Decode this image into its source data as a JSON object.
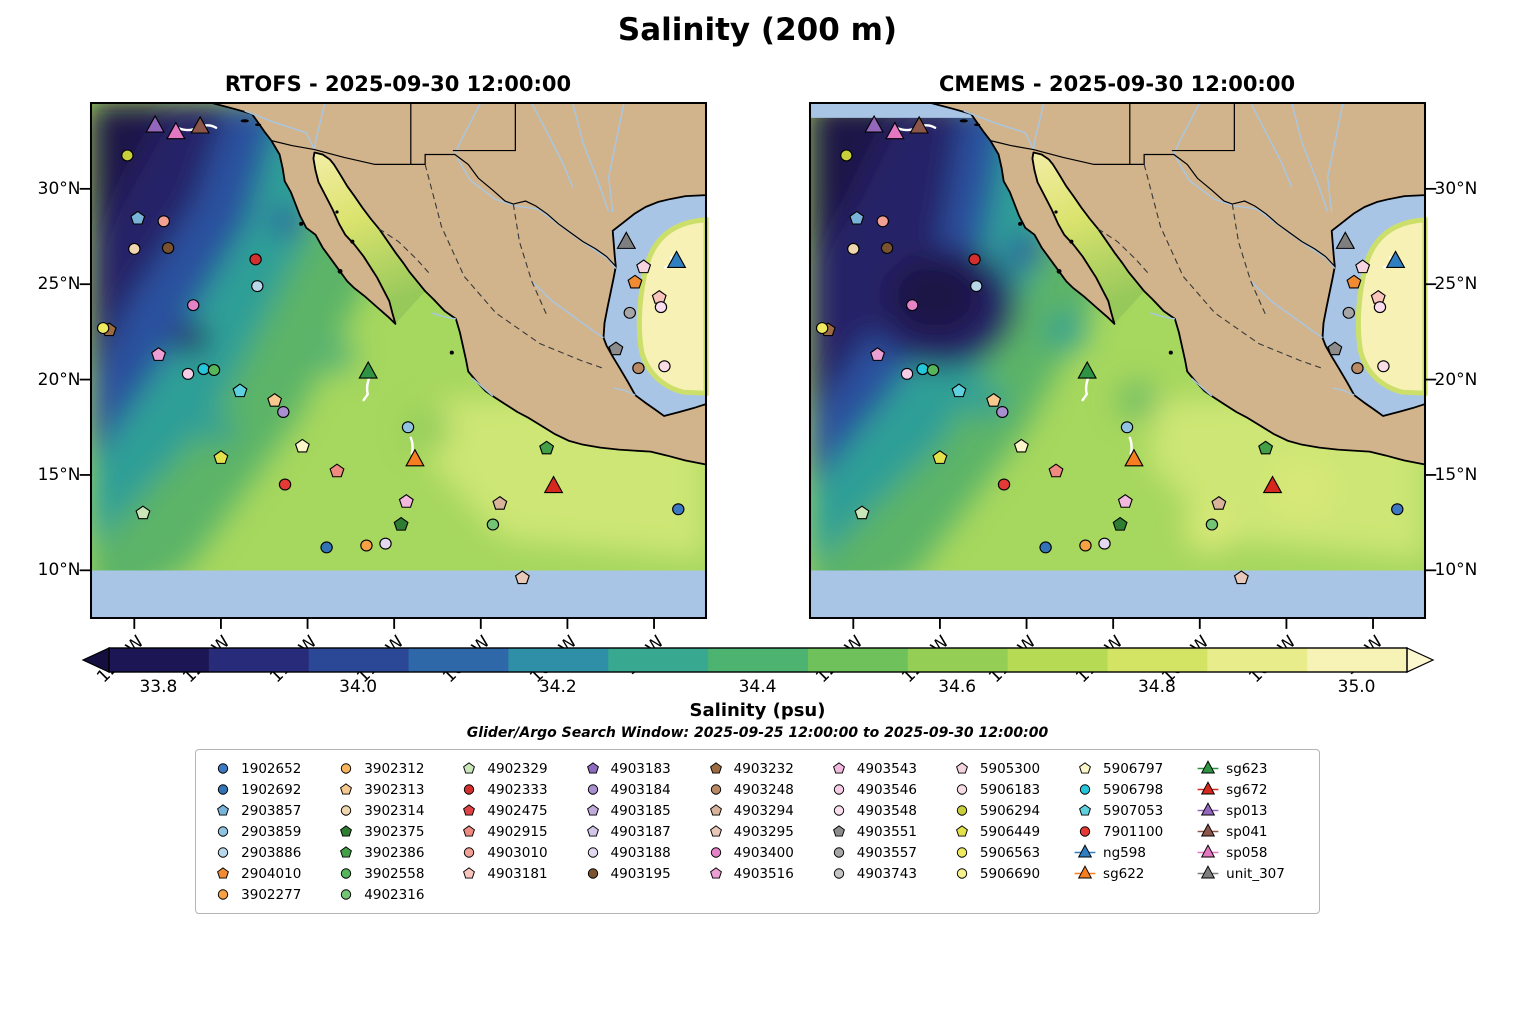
{
  "figure": {
    "title": "Salinity (200 m)",
    "panels": [
      {
        "title": "RTOFS - 2025-09-30 12:00:00",
        "model": "RTOFS"
      },
      {
        "title": "CMEMS - 2025-09-30 12:00:00",
        "model": "CMEMS"
      }
    ]
  },
  "colorbar": {
    "label": "Salinity (psu)",
    "ticks": [
      "33.8",
      "34.0",
      "34.2",
      "34.4",
      "34.6",
      "34.8",
      "35.0"
    ],
    "tick_values": [
      33.8,
      34.0,
      34.2,
      34.4,
      34.6,
      34.8,
      35.0
    ],
    "range": [
      33.75,
      35.05
    ],
    "colors": [
      "#1d1654",
      "#272b7a",
      "#2b4897",
      "#2e68a9",
      "#2f8fa6",
      "#38a890",
      "#4cb370",
      "#6fc15c",
      "#94ce54",
      "#b7da55",
      "#d3e364",
      "#e9ec8b",
      "#f7f3b7"
    ],
    "extend_left": "#140f3e",
    "extend_right": "#fbf8d0"
  },
  "search_window": "Glider/Argo Search Window: 2025-09-25 12:00:00 to 2025-09-30 12:00:00",
  "legend": {
    "columns": [
      [
        {
          "label": "1902652",
          "marker": "circle",
          "color": "#3d78c2"
        },
        {
          "label": "1902692",
          "marker": "circle",
          "color": "#3173b5"
        },
        {
          "label": "2903857",
          "marker": "pentagon",
          "color": "#7ab3d9"
        },
        {
          "label": "2903859",
          "marker": "circle",
          "color": "#8fc3e0"
        },
        {
          "label": "2903886",
          "marker": "circle",
          "color": "#b8d8ea"
        },
        {
          "label": "2904010",
          "marker": "pentagon",
          "color": "#f08b33"
        },
        {
          "label": "3902277",
          "marker": "circle",
          "color": "#f6a143"
        }
      ],
      [
        {
          "label": "3902312",
          "marker": "circle",
          "color": "#f9b45c"
        },
        {
          "label": "3902313",
          "marker": "pentagon",
          "color": "#f8c98e"
        },
        {
          "label": "3902314",
          "marker": "circle",
          "color": "#f0d6ae"
        },
        {
          "label": "3902375",
          "marker": "pentagon",
          "color": "#2e7d32"
        },
        {
          "label": "3902386",
          "marker": "pentagon",
          "color": "#43a047"
        },
        {
          "label": "3902558",
          "marker": "circle",
          "color": "#57b65b"
        },
        {
          "label": "4902316",
          "marker": "circle",
          "color": "#74c476"
        }
      ],
      [
        {
          "label": "4902329",
          "marker": "pentagon",
          "color": "#c8e6b8"
        },
        {
          "label": "4902333",
          "marker": "circle",
          "color": "#d32f2f"
        },
        {
          "label": "4902475",
          "marker": "pentagon",
          "color": "#e04343"
        },
        {
          "label": "4902915",
          "marker": "pentagon",
          "color": "#ef8a80"
        },
        {
          "label": "4903010",
          "marker": "circle",
          "color": "#f2a093"
        },
        {
          "label": "4903181",
          "marker": "pentagon",
          "color": "#f9c4bc"
        }
      ],
      [
        {
          "label": "4903183",
          "marker": "pentagon",
          "color": "#8e6bbf"
        },
        {
          "label": "4903184",
          "marker": "circle",
          "color": "#a98fd0"
        },
        {
          "label": "4903185",
          "marker": "pentagon",
          "color": "#c0abdc"
        },
        {
          "label": "4903187",
          "marker": "pentagon",
          "color": "#d4c6e8"
        },
        {
          "label": "4903188",
          "marker": "circle",
          "color": "#e2d9f0"
        },
        {
          "label": "4903195",
          "marker": "circle",
          "color": "#7a5230"
        }
      ],
      [
        {
          "label": "4903232",
          "marker": "pentagon",
          "color": "#9c6b42"
        },
        {
          "label": "4903248",
          "marker": "circle",
          "color": "#b98a63"
        },
        {
          "label": "4903294",
          "marker": "pentagon",
          "color": "#d9b49a"
        },
        {
          "label": "4903295",
          "marker": "pentagon",
          "color": "#e8c8b8"
        },
        {
          "label": "4903400",
          "marker": "circle",
          "color": "#e583c9"
        },
        {
          "label": "4903516",
          "marker": "pentagon",
          "color": "#eb9fd4"
        }
      ],
      [
        {
          "label": "4903543",
          "marker": "pentagon",
          "color": "#f2b8dd"
        },
        {
          "label": "4903546",
          "marker": "circle",
          "color": "#f6cce7"
        },
        {
          "label": "4903548",
          "marker": "circle",
          "color": "#fadef0"
        },
        {
          "label": "4903551",
          "marker": "pentagon",
          "color": "#8c8c8c"
        },
        {
          "label": "4903557",
          "marker": "circle",
          "color": "#a6a6a6"
        },
        {
          "label": "4903743",
          "marker": "circle",
          "color": "#c4c4c4"
        }
      ],
      [
        {
          "label": "5905300",
          "marker": "pentagon",
          "color": "#f5d4e0"
        },
        {
          "label": "5906183",
          "marker": "circle",
          "color": "#f8dce6"
        },
        {
          "label": "5906294",
          "marker": "circle",
          "color": "#c9cf3a"
        },
        {
          "label": "5906449",
          "marker": "pentagon",
          "color": "#e3e24b"
        },
        {
          "label": "5906563",
          "marker": "circle",
          "color": "#eeeb61"
        },
        {
          "label": "5906690",
          "marker": "circle",
          "color": "#f5f28e"
        }
      ],
      [
        {
          "label": "5906797",
          "marker": "pentagon",
          "color": "#fdf6c9"
        },
        {
          "label": "5906798",
          "marker": "circle",
          "color": "#26c6da"
        },
        {
          "label": "5907053",
          "marker": "pentagon",
          "color": "#5fd0dd"
        },
        {
          "label": "7901100",
          "marker": "circle",
          "color": "#e53935"
        },
        {
          "label": "ng598",
          "marker": "glider",
          "color": "#2f7fc1"
        },
        {
          "label": "sg622",
          "marker": "glider",
          "color": "#f57f20"
        }
      ],
      [
        {
          "label": "sg623",
          "marker": "glider",
          "color": "#2e9444"
        },
        {
          "label": "sg672",
          "marker": "glider",
          "color": "#d7281e"
        },
        {
          "label": "sp013",
          "marker": "glider",
          "color": "#9467bd"
        },
        {
          "label": "sp041",
          "marker": "glider",
          "color": "#8c564b"
        },
        {
          "label": "sp058",
          "marker": "glider",
          "color": "#e377c2"
        },
        {
          "label": "unit_307",
          "marker": "glider",
          "color": "#7f7f7f"
        }
      ]
    ]
  },
  "chart_data": {
    "type": "heatmap",
    "title": "Salinity (200 m)",
    "variable": "Salinity",
    "units": "psu",
    "depth_m": 200,
    "panels": [
      {
        "model": "RTOFS",
        "time": "2025-09-30 12:00:00"
      },
      {
        "model": "CMEMS",
        "time": "2025-09-30 12:00:00"
      }
    ],
    "x_axis": {
      "ticks": [
        -125,
        -120,
        -115,
        -110,
        -105,
        -100,
        -95
      ],
      "tick_labels": [
        "125°W",
        "120°W",
        "115°W",
        "110°W",
        "105°W",
        "100°W",
        "95°W"
      ],
      "range": [
        -127.5,
        -92.0
      ]
    },
    "y_axis": {
      "ticks": [
        30,
        25,
        20,
        15,
        10
      ],
      "tick_labels": [
        "30°N",
        "25°N",
        "20°N",
        "15°N",
        "10°N"
      ],
      "range": [
        7.5,
        34.5
      ]
    },
    "colorbar_range": [
      33.75,
      35.05
    ],
    "colorbar_ticks": [
      33.8,
      34.0,
      34.2,
      34.4,
      34.6,
      34.8,
      35.0
    ],
    "legend_position": "bottom",
    "search_window": {
      "start": "2025-09-25 12:00:00",
      "end": "2025-09-30 12:00:00"
    },
    "platforms": [
      {
        "id": "sp013",
        "type": "glider",
        "shape": "triangle",
        "color": "#9467bd",
        "lon": -123.8,
        "lat": 33.3
      },
      {
        "id": "sp058",
        "type": "glider",
        "shape": "triangle",
        "color": "#e377c2",
        "lon": -122.6,
        "lat": 32.95
      },
      {
        "id": "sp041",
        "type": "glider",
        "shape": "triangle",
        "color": "#8c564b",
        "lon": -121.2,
        "lat": 33.25
      },
      {
        "id": "5906294",
        "type": "argo",
        "shape": "circle",
        "color": "#c9cf3a",
        "lon": -125.4,
        "lat": 31.75
      },
      {
        "id": "2903857",
        "type": "argo",
        "shape": "pentagon",
        "color": "#7ab3d9",
        "lon": -124.8,
        "lat": 28.45
      },
      {
        "id": "4903010",
        "type": "argo",
        "shape": "circle",
        "color": "#f2a093",
        "lon": -123.3,
        "lat": 28.3
      },
      {
        "id": "3902314",
        "type": "argo",
        "shape": "circle",
        "color": "#f0d6ae",
        "lon": -125.0,
        "lat": 26.85
      },
      {
        "id": "4903195",
        "type": "argo",
        "shape": "circle",
        "color": "#7a5230",
        "lon": -123.05,
        "lat": 26.9
      },
      {
        "id": "4902333",
        "type": "argo",
        "shape": "circle",
        "color": "#d32f2f",
        "lon": -118.0,
        "lat": 26.3
      },
      {
        "id": "2903886",
        "type": "argo",
        "shape": "circle",
        "color": "#b8d8ea",
        "lon": -117.9,
        "lat": 24.9
      },
      {
        "id": "4903400",
        "type": "argo",
        "shape": "circle",
        "color": "#e583c9",
        "lon": -121.6,
        "lat": 23.9
      },
      {
        "id": "4903232",
        "type": "argo",
        "shape": "pentagon",
        "color": "#9c6b42",
        "lon": -126.45,
        "lat": 22.6
      },
      {
        "id": "5906563",
        "type": "argo",
        "shape": "circle",
        "color": "#eeeb61",
        "lon": -126.8,
        "lat": 22.7
      },
      {
        "id": "4903516",
        "type": "argo",
        "shape": "pentagon",
        "color": "#eb9fd4",
        "lon": -123.6,
        "lat": 21.3
      },
      {
        "id": "4903546",
        "type": "argo",
        "shape": "circle",
        "color": "#f6cce7",
        "lon": -121.9,
        "lat": 20.3
      },
      {
        "id": "5906798",
        "type": "argo",
        "shape": "circle",
        "color": "#26c6da",
        "lon": -121.0,
        "lat": 20.55
      },
      {
        "id": "3902558",
        "type": "argo",
        "shape": "circle",
        "color": "#57b65b",
        "lon": -120.4,
        "lat": 20.5
      },
      {
        "id": "5907053",
        "type": "argo",
        "shape": "pentagon",
        "color": "#5fd0dd",
        "lon": -118.9,
        "lat": 19.4
      },
      {
        "id": "3902313",
        "type": "argo",
        "shape": "pentagon",
        "color": "#f8c98e",
        "lon": -116.9,
        "lat": 18.9
      },
      {
        "id": "4903184",
        "type": "argo",
        "shape": "circle",
        "color": "#a98fd0",
        "lon": -116.4,
        "lat": 18.3
      },
      {
        "id": "sg623",
        "type": "glider",
        "shape": "triangle",
        "color": "#2e9444",
        "lon": -111.5,
        "lat": 20.4
      },
      {
        "id": "2903859",
        "type": "argo",
        "shape": "circle",
        "color": "#8fc3e0",
        "lon": -109.2,
        "lat": 17.5
      },
      {
        "id": "5906797",
        "type": "argo",
        "shape": "pentagon",
        "color": "#fdf6c9",
        "lon": -115.3,
        "lat": 16.5
      },
      {
        "id": "5906449",
        "type": "argo",
        "shape": "pentagon",
        "color": "#e3e24b",
        "lon": -120.0,
        "lat": 15.9
      },
      {
        "id": "4902915",
        "type": "argo",
        "shape": "pentagon",
        "color": "#ef8a80",
        "lon": -113.3,
        "lat": 15.2
      },
      {
        "id": "7901100",
        "type": "argo",
        "shape": "circle",
        "color": "#e53935",
        "lon": -116.3,
        "lat": 14.5
      },
      {
        "id": "sg622",
        "type": "glider",
        "shape": "triangle",
        "color": "#f57f20",
        "lon": -108.8,
        "lat": 15.8
      },
      {
        "id": "4903543",
        "type": "argo",
        "shape": "pentagon",
        "color": "#f2b8dd",
        "lon": -109.3,
        "lat": 13.6
      },
      {
        "id": "3902375",
        "type": "argo",
        "shape": "pentagon",
        "color": "#2e7d32",
        "lon": -109.6,
        "lat": 12.4
      },
      {
        "id": "1902692",
        "type": "argo",
        "shape": "circle",
        "color": "#3173b5",
        "lon": -113.9,
        "lat": 11.2
      },
      {
        "id": "3902277",
        "type": "argo",
        "shape": "circle",
        "color": "#f6a143",
        "lon": -111.6,
        "lat": 11.3
      },
      {
        "id": "4903188",
        "type": "argo",
        "shape": "circle",
        "color": "#e2d9f0",
        "lon": -110.5,
        "lat": 11.4
      },
      {
        "id": "sg672",
        "type": "glider",
        "shape": "triangle",
        "color": "#d7281e",
        "lon": -100.8,
        "lat": 14.4
      },
      {
        "id": "3902386",
        "type": "argo",
        "shape": "pentagon",
        "color": "#43a047",
        "lon": -101.2,
        "lat": 16.4
      },
      {
        "id": "unit_307",
        "type": "glider",
        "shape": "triangle",
        "color": "#7f7f7f",
        "lon": -96.6,
        "lat": 27.2
      },
      {
        "id": "ng598",
        "type": "glider",
        "shape": "triangle",
        "color": "#2f7fc1",
        "lon": -93.7,
        "lat": 26.2
      },
      {
        "id": "5905300",
        "type": "argo",
        "shape": "pentagon",
        "color": "#f5d4e0",
        "lon": -95.6,
        "lat": 25.9
      },
      {
        "id": "2904010",
        "type": "argo",
        "shape": "pentagon",
        "color": "#f08b33",
        "lon": -96.1,
        "lat": 25.1
      },
      {
        "id": "4903181",
        "type": "argo",
        "shape": "pentagon",
        "color": "#f9c4bc",
        "lon": -94.7,
        "lat": 24.3
      },
      {
        "id": "4903548",
        "type": "argo",
        "shape": "circle",
        "color": "#fadef0",
        "lon": -94.6,
        "lat": 23.8
      },
      {
        "id": "4903557",
        "type": "argo",
        "shape": "circle",
        "color": "#a6a6a6",
        "lon": -96.4,
        "lat": 23.5
      },
      {
        "id": "4903551",
        "type": "argo",
        "shape": "pentagon",
        "color": "#8c8c8c",
        "lon": -97.2,
        "lat": 21.6
      },
      {
        "id": "4903248",
        "type": "argo",
        "shape": "circle",
        "color": "#b98a63",
        "lon": -95.9,
        "lat": 20.6
      },
      {
        "id": "5906183",
        "type": "argo",
        "shape": "circle",
        "color": "#f8dce6",
        "lon": -94.4,
        "lat": 20.7
      },
      {
        "id": "1902652",
        "type": "argo",
        "shape": "circle",
        "color": "#3d78c2",
        "lon": -93.6,
        "lat": 13.2
      },
      {
        "id": "4903294",
        "type": "argo",
        "shape": "pentagon",
        "color": "#d9b49a",
        "lon": -103.9,
        "lat": 13.5
      },
      {
        "id": "4902316",
        "type": "argo",
        "shape": "circle",
        "color": "#74c476",
        "lon": -104.3,
        "lat": 12.4
      },
      {
        "id": "4903295",
        "type": "argo",
        "shape": "pentagon",
        "color": "#e8c8b8",
        "lon": -102.6,
        "lat": 9.6
      },
      {
        "id": "4902329",
        "type": "argo",
        "shape": "pentagon",
        "color": "#c8e6b8",
        "lon": -124.5,
        "lat": 13.0
      }
    ],
    "colors": {
      "land": "#d2b48c",
      "shelf_no_data": "#a9c5e5",
      "glider_track": "#ffffff"
    }
  }
}
